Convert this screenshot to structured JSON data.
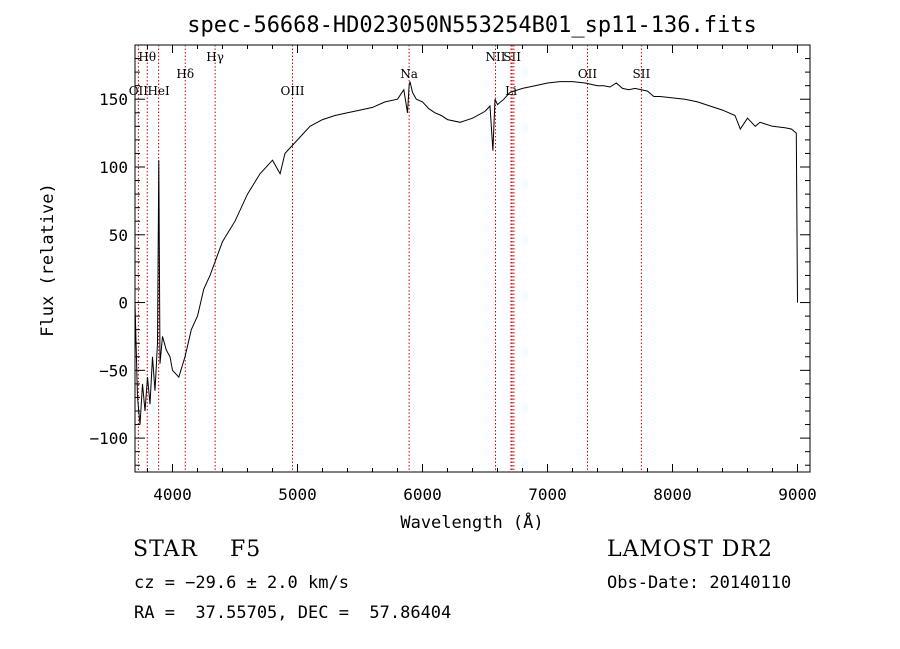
{
  "chart_data": {
    "type": "line",
    "title": "spec-56668-HD023050N553254B01_sp11-136.fits",
    "xlabel": "Wavelength (Å)",
    "ylabel": "Flux (relative)",
    "xlim": [
      3700,
      9100
    ],
    "ylim": [
      -125,
      190
    ],
    "xticks": [
      4000,
      5000,
      6000,
      7000,
      8000,
      9000
    ],
    "yticks": [
      -100,
      -50,
      0,
      50,
      100,
      150
    ],
    "grid": false,
    "line_color": "#000000",
    "marker_color": "#cc0000",
    "series": [
      {
        "x": [
          3700,
          3720,
          3740,
          3760,
          3780,
          3800,
          3820,
          3840,
          3860,
          3880,
          3890,
          3900,
          3920,
          3950,
          3980,
          4000,
          4050,
          4100,
          4150,
          4200,
          4250,
          4300,
          4340,
          4400,
          4500,
          4600,
          4700,
          4800,
          4861,
          4900,
          5000,
          5100,
          5200,
          5300,
          5400,
          5500,
          5600,
          5700,
          5800,
          5850,
          5880,
          5893,
          5900,
          5920,
          5950,
          6000,
          6050,
          6100,
          6150,
          6200,
          6300,
          6400,
          6500,
          6540,
          6563,
          6580,
          6600,
          6650,
          6700,
          6800,
          6900,
          7000,
          7100,
          7200,
          7300,
          7400,
          7450,
          7500,
          7550,
          7600,
          7650,
          7700,
          7800,
          7850,
          7900,
          8000,
          8100,
          8200,
          8300,
          8400,
          8500,
          8542,
          8600,
          8662,
          8700,
          8800,
          8900,
          8950,
          8990,
          9000
        ],
        "y": [
          0,
          -70,
          -90,
          -60,
          -80,
          -55,
          -75,
          -40,
          -65,
          -30,
          105,
          -45,
          -25,
          -35,
          -40,
          -50,
          -55,
          -40,
          -20,
          -10,
          10,
          20,
          30,
          45,
          60,
          80,
          95,
          105,
          95,
          110,
          120,
          130,
          135,
          138,
          140,
          142,
          144,
          148,
          150,
          157,
          140,
          160,
          163,
          155,
          150,
          148,
          143,
          140,
          138,
          135,
          133,
          136,
          141,
          145,
          112,
          150,
          146,
          150,
          155,
          158,
          160,
          162,
          163,
          163,
          162,
          160,
          160,
          159,
          162,
          158,
          157,
          158,
          156,
          152,
          152,
          151,
          150,
          148,
          145,
          142,
          138,
          128,
          136,
          130,
          133,
          130,
          129,
          128,
          125,
          0
        ]
      }
    ],
    "lines": [
      {
        "label": "Hθ",
        "x": 3798,
        "row": 1
      },
      {
        "label": "OII",
        "x": 3727,
        "row": 3
      },
      {
        "label": "HeI",
        "x": 3889,
        "row": 3
      },
      {
        "label": "Hδ",
        "x": 4102,
        "row": 2
      },
      {
        "label": "Hγ",
        "x": 4341,
        "row": 1
      },
      {
        "label": "OIII",
        "x": 4960,
        "row": 3
      },
      {
        "label": "Na",
        "x": 5893,
        "row": 2
      },
      {
        "label": "NII",
        "x": 6584,
        "row": 1
      },
      {
        "label": "SII",
        "x": 6717,
        "row": 1
      },
      {
        "label": "Li",
        "x": 6708,
        "row": 3
      },
      {
        "label": "",
        "x": 6731,
        "row": 1
      },
      {
        "label": "OII",
        "x": 7320,
        "row": 2
      },
      {
        "label": "SII",
        "x": 7751,
        "row": 2
      }
    ]
  },
  "footer": {
    "class_line": "STAR    F5",
    "cz_line": "cz = −29.6 ± 2.0 km/s",
    "radec_line": "RA =  37.55705, DEC =  57.86404",
    "survey": "LAMOST DR2",
    "obs_date": "Obs-Date: 20140110"
  }
}
